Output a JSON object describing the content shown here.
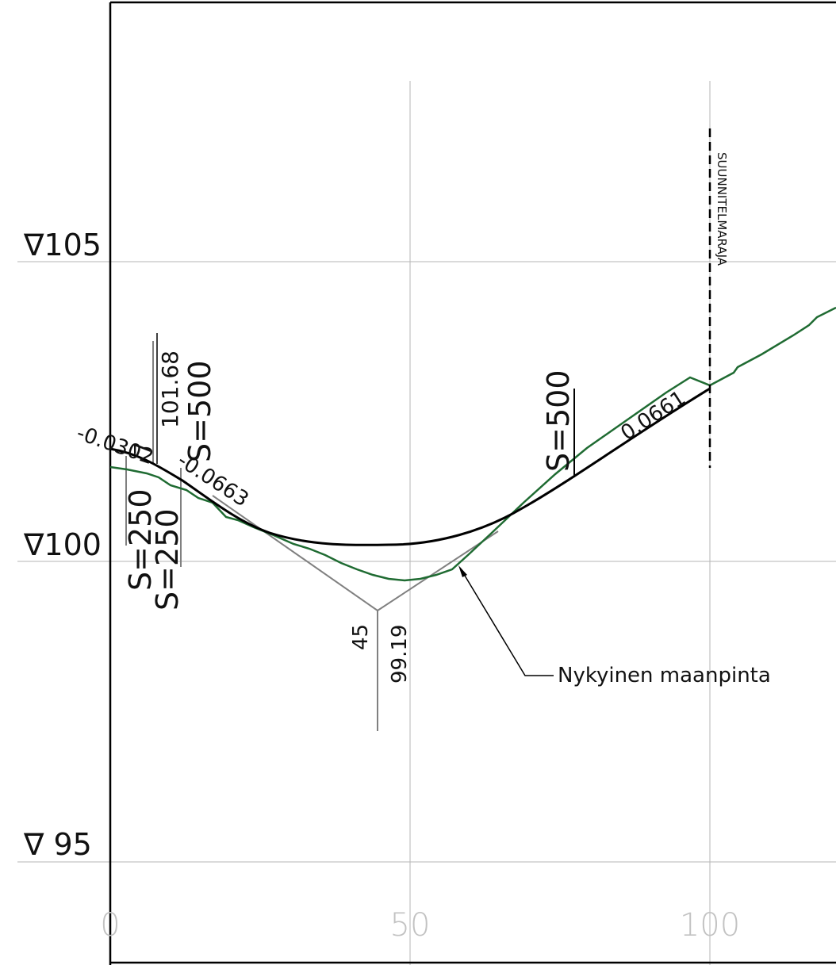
{
  "levels": {
    "l105": "∇105",
    "l100": "∇100",
    "l95": "∇ 95"
  },
  "stations": {
    "s0": "0",
    "s50": "50",
    "s100": "100"
  },
  "labels": {
    "grade_left": "-0.0302",
    "grade_mid": "-0.0663",
    "grade_right": "0.0661",
    "marker_7": "7",
    "elev_point": "101.68",
    "radius_left_1": "S=250",
    "radius_left_2": "S=250",
    "radius_left_3": "S=500",
    "radius_right": "S=500",
    "pvi_station": "45",
    "pvi_elev": "99.19",
    "boundary": "SUUNNITELMARAJA",
    "ground": "Nykyinen maanpinta"
  },
  "colors": {
    "ground": "#1f6b32",
    "design": "#000000",
    "construction": "#808080",
    "grid": "#b5b5b5"
  }
}
